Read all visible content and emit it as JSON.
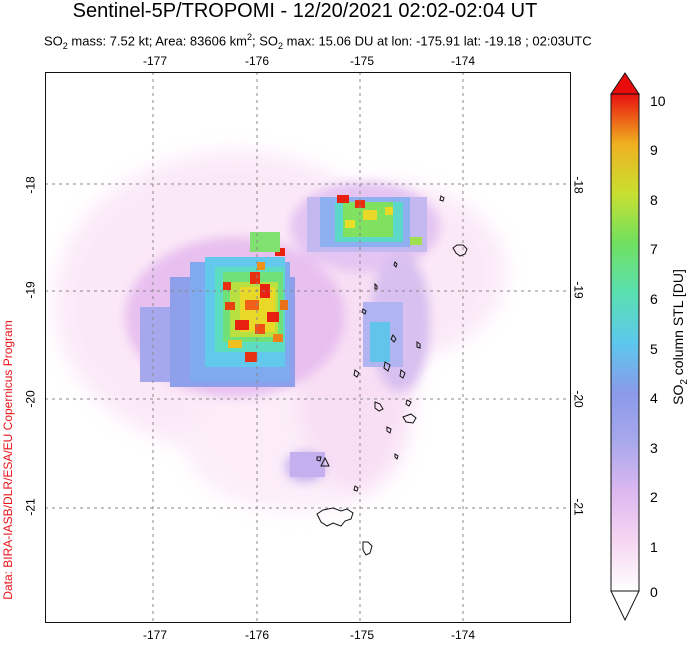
{
  "header": {
    "title": "Sentinel-5P/TROPOMI - 12/20/2021 02:02-02:04 UT",
    "subtitle_parts": {
      "so2_prefix": "SO",
      "sub2": "2",
      "mass_text": " mass: 7.52 kt; Area: 83606 km",
      "sup2": "2",
      "sep": "; SO",
      "sub2b": "2",
      "rest": " max: 15.06 DU at lon: -175.91 lat: -19.18 ; 02:03UTC"
    }
  },
  "credit": "Data: BIRA-IASB/DLR/ESA/EU Copernicus Program",
  "map": {
    "lon_ticks": [
      "-177",
      "-176",
      "-175",
      "-174"
    ],
    "lat_ticks": [
      "-18",
      "-19",
      "-20",
      "-21"
    ],
    "grid": true,
    "volcano_marker": "triangle-icon"
  },
  "colorbar": {
    "title_prefix": "SO",
    "title_sub": "2",
    "title_rest": " column STL [DU]",
    "ticks": [
      "0",
      "1",
      "2",
      "3",
      "4",
      "5",
      "6",
      "7",
      "8",
      "9",
      "10"
    ],
    "colors": [
      "#ffffff",
      "#f6c8f0",
      "#b8a8ec",
      "#8f9ae8",
      "#6aa0ee",
      "#58d8e8",
      "#5ae0a0",
      "#80e058",
      "#d0e030",
      "#f0c820",
      "#f06018",
      "#e80c0c"
    ]
  }
}
